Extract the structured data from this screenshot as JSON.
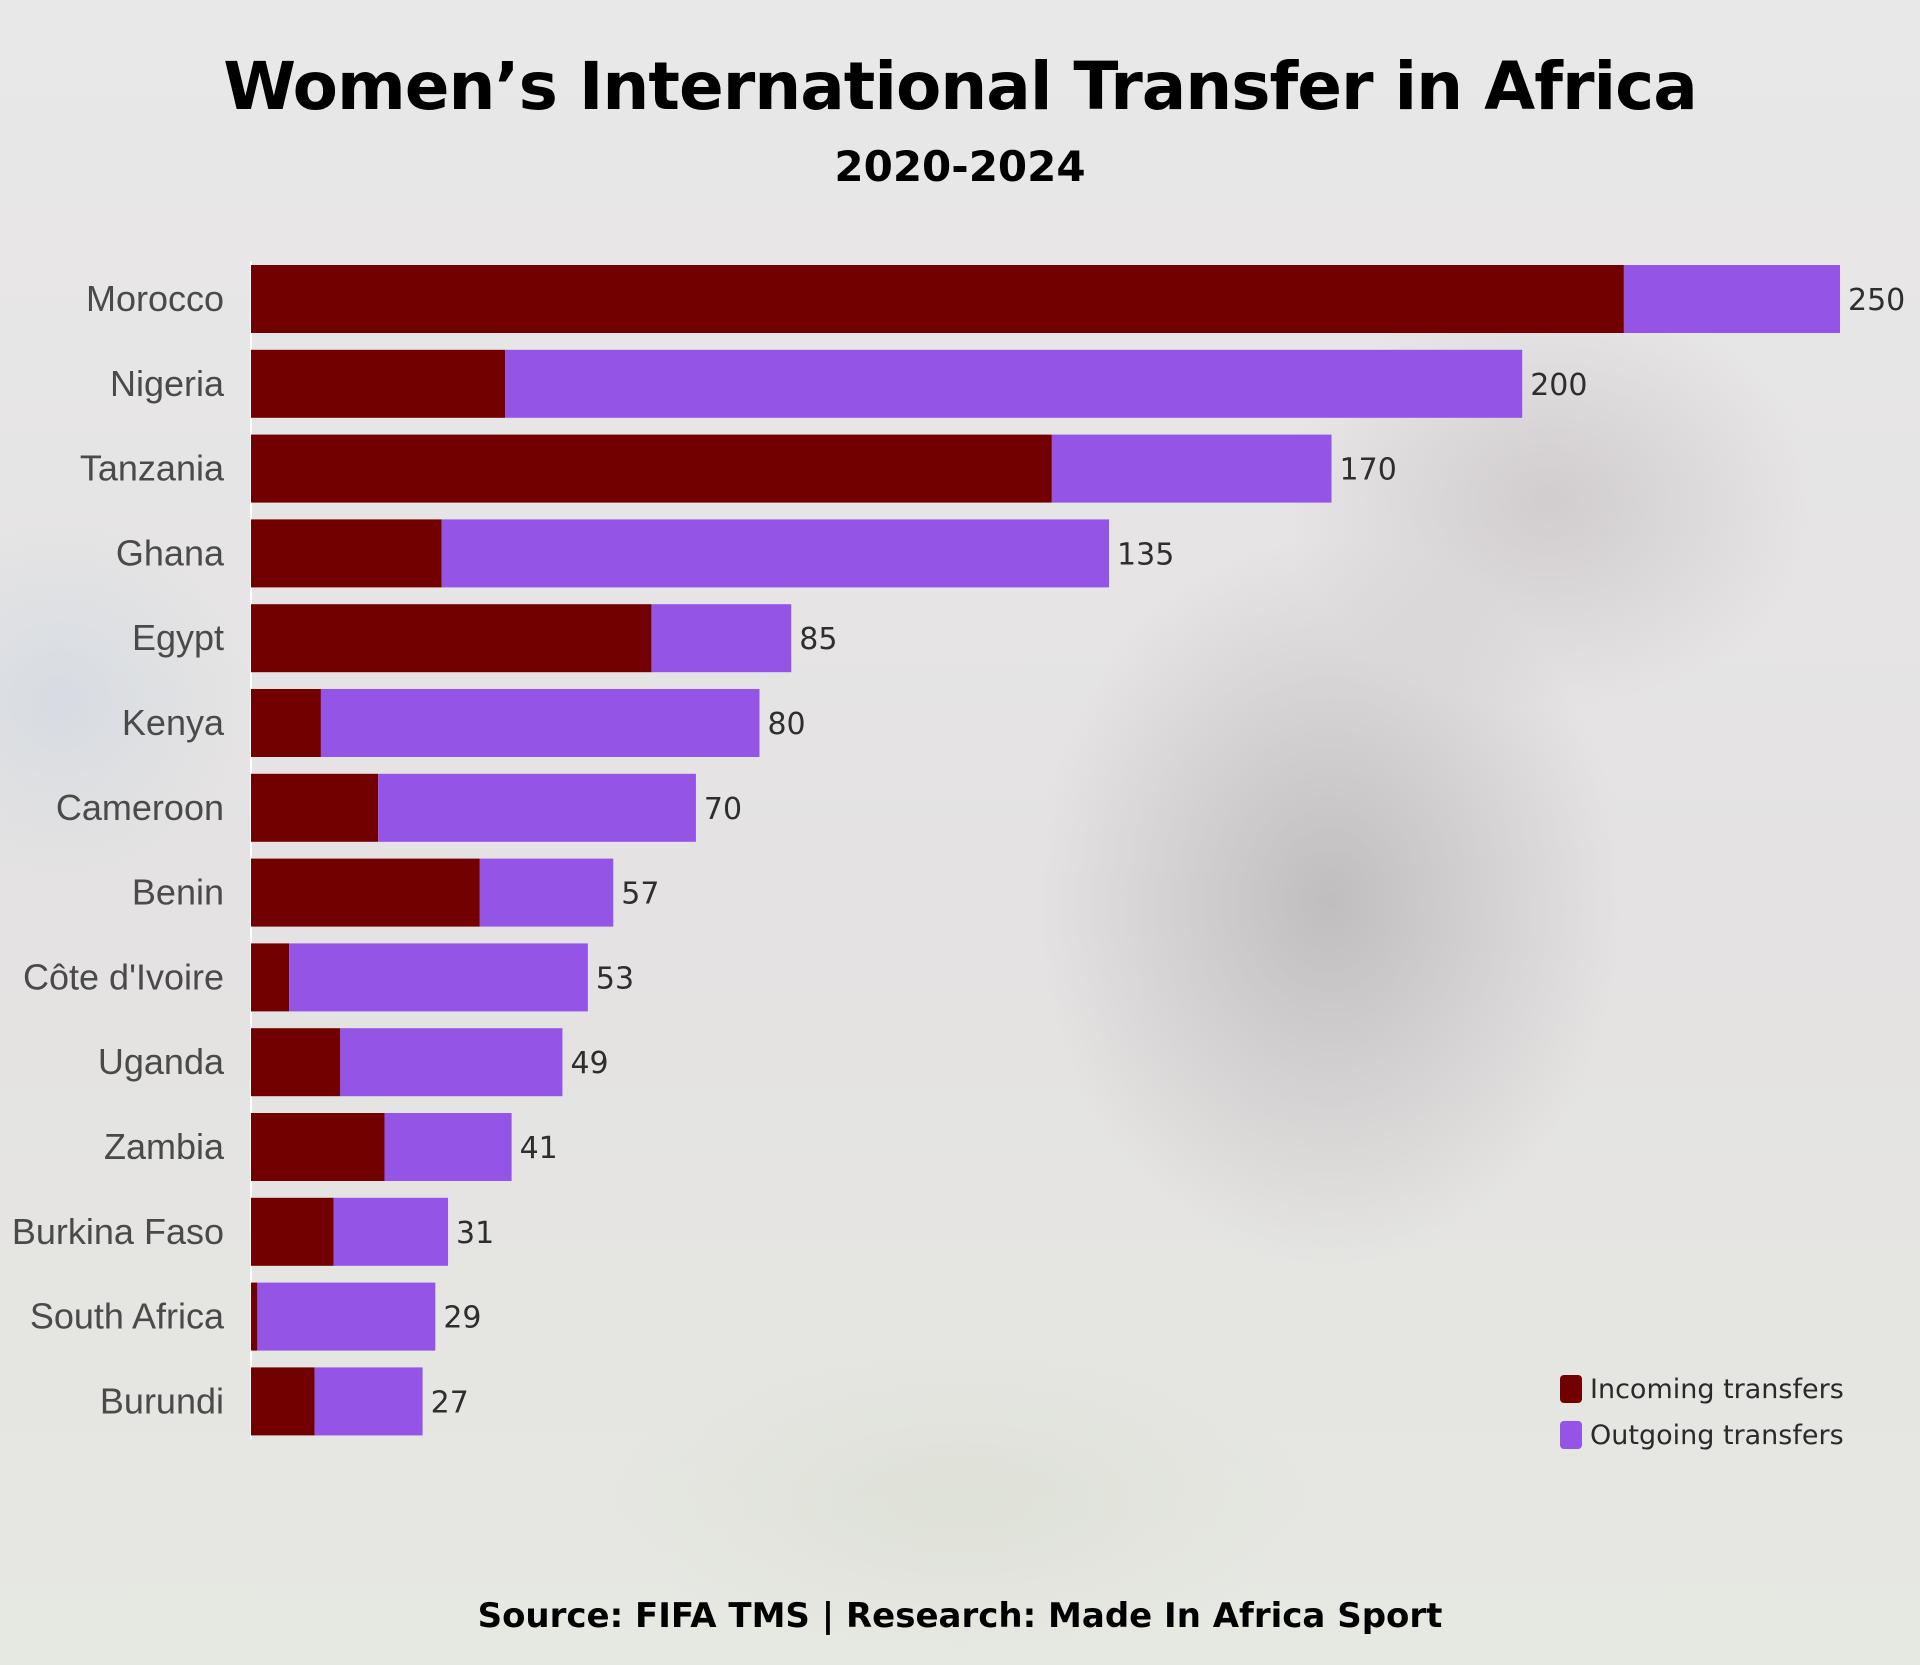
{
  "title": "Women’s International Transfer in Africa",
  "subtitle": "2020-2024",
  "source": "Source: FIFA TMS | Research: Made In Africa Sport",
  "legend": {
    "incoming": "Incoming transfers",
    "outgoing": "Outgoing transfers"
  },
  "colors": {
    "incoming": "#730000",
    "outgoing": "#9454e6",
    "category_label": "#4a4a4a",
    "value_label": "#2e2e2e"
  },
  "chart_data": {
    "type": "bar",
    "orientation": "horizontal",
    "stacked": true,
    "legend_position": "bottom-right",
    "grid": false,
    "xlim": [
      0,
      250
    ],
    "categories": [
      "Morocco",
      "Nigeria",
      "Tanzania",
      "Ghana",
      "Egypt",
      "Kenya",
      "Cameroon",
      "Benin",
      "Côte d'Ivoire",
      "Uganda",
      "Zambia",
      "Burkina Faso",
      "South Africa",
      "Burundi"
    ],
    "series": [
      {
        "name": "Incoming transfers",
        "values": [
          216,
          40,
          126,
          30,
          63,
          11,
          20,
          36,
          6,
          14,
          21,
          13,
          1,
          10
        ]
      },
      {
        "name": "Outgoing transfers",
        "values": [
          34,
          160,
          44,
          105,
          22,
          69,
          50,
          21,
          47,
          35,
          20,
          18,
          28,
          17
        ]
      }
    ],
    "totals": [
      "250",
      "200",
      "170",
      "135",
      "85",
      "80",
      "70",
      "57",
      "53",
      "49",
      "41",
      "31",
      "29",
      "27"
    ]
  }
}
